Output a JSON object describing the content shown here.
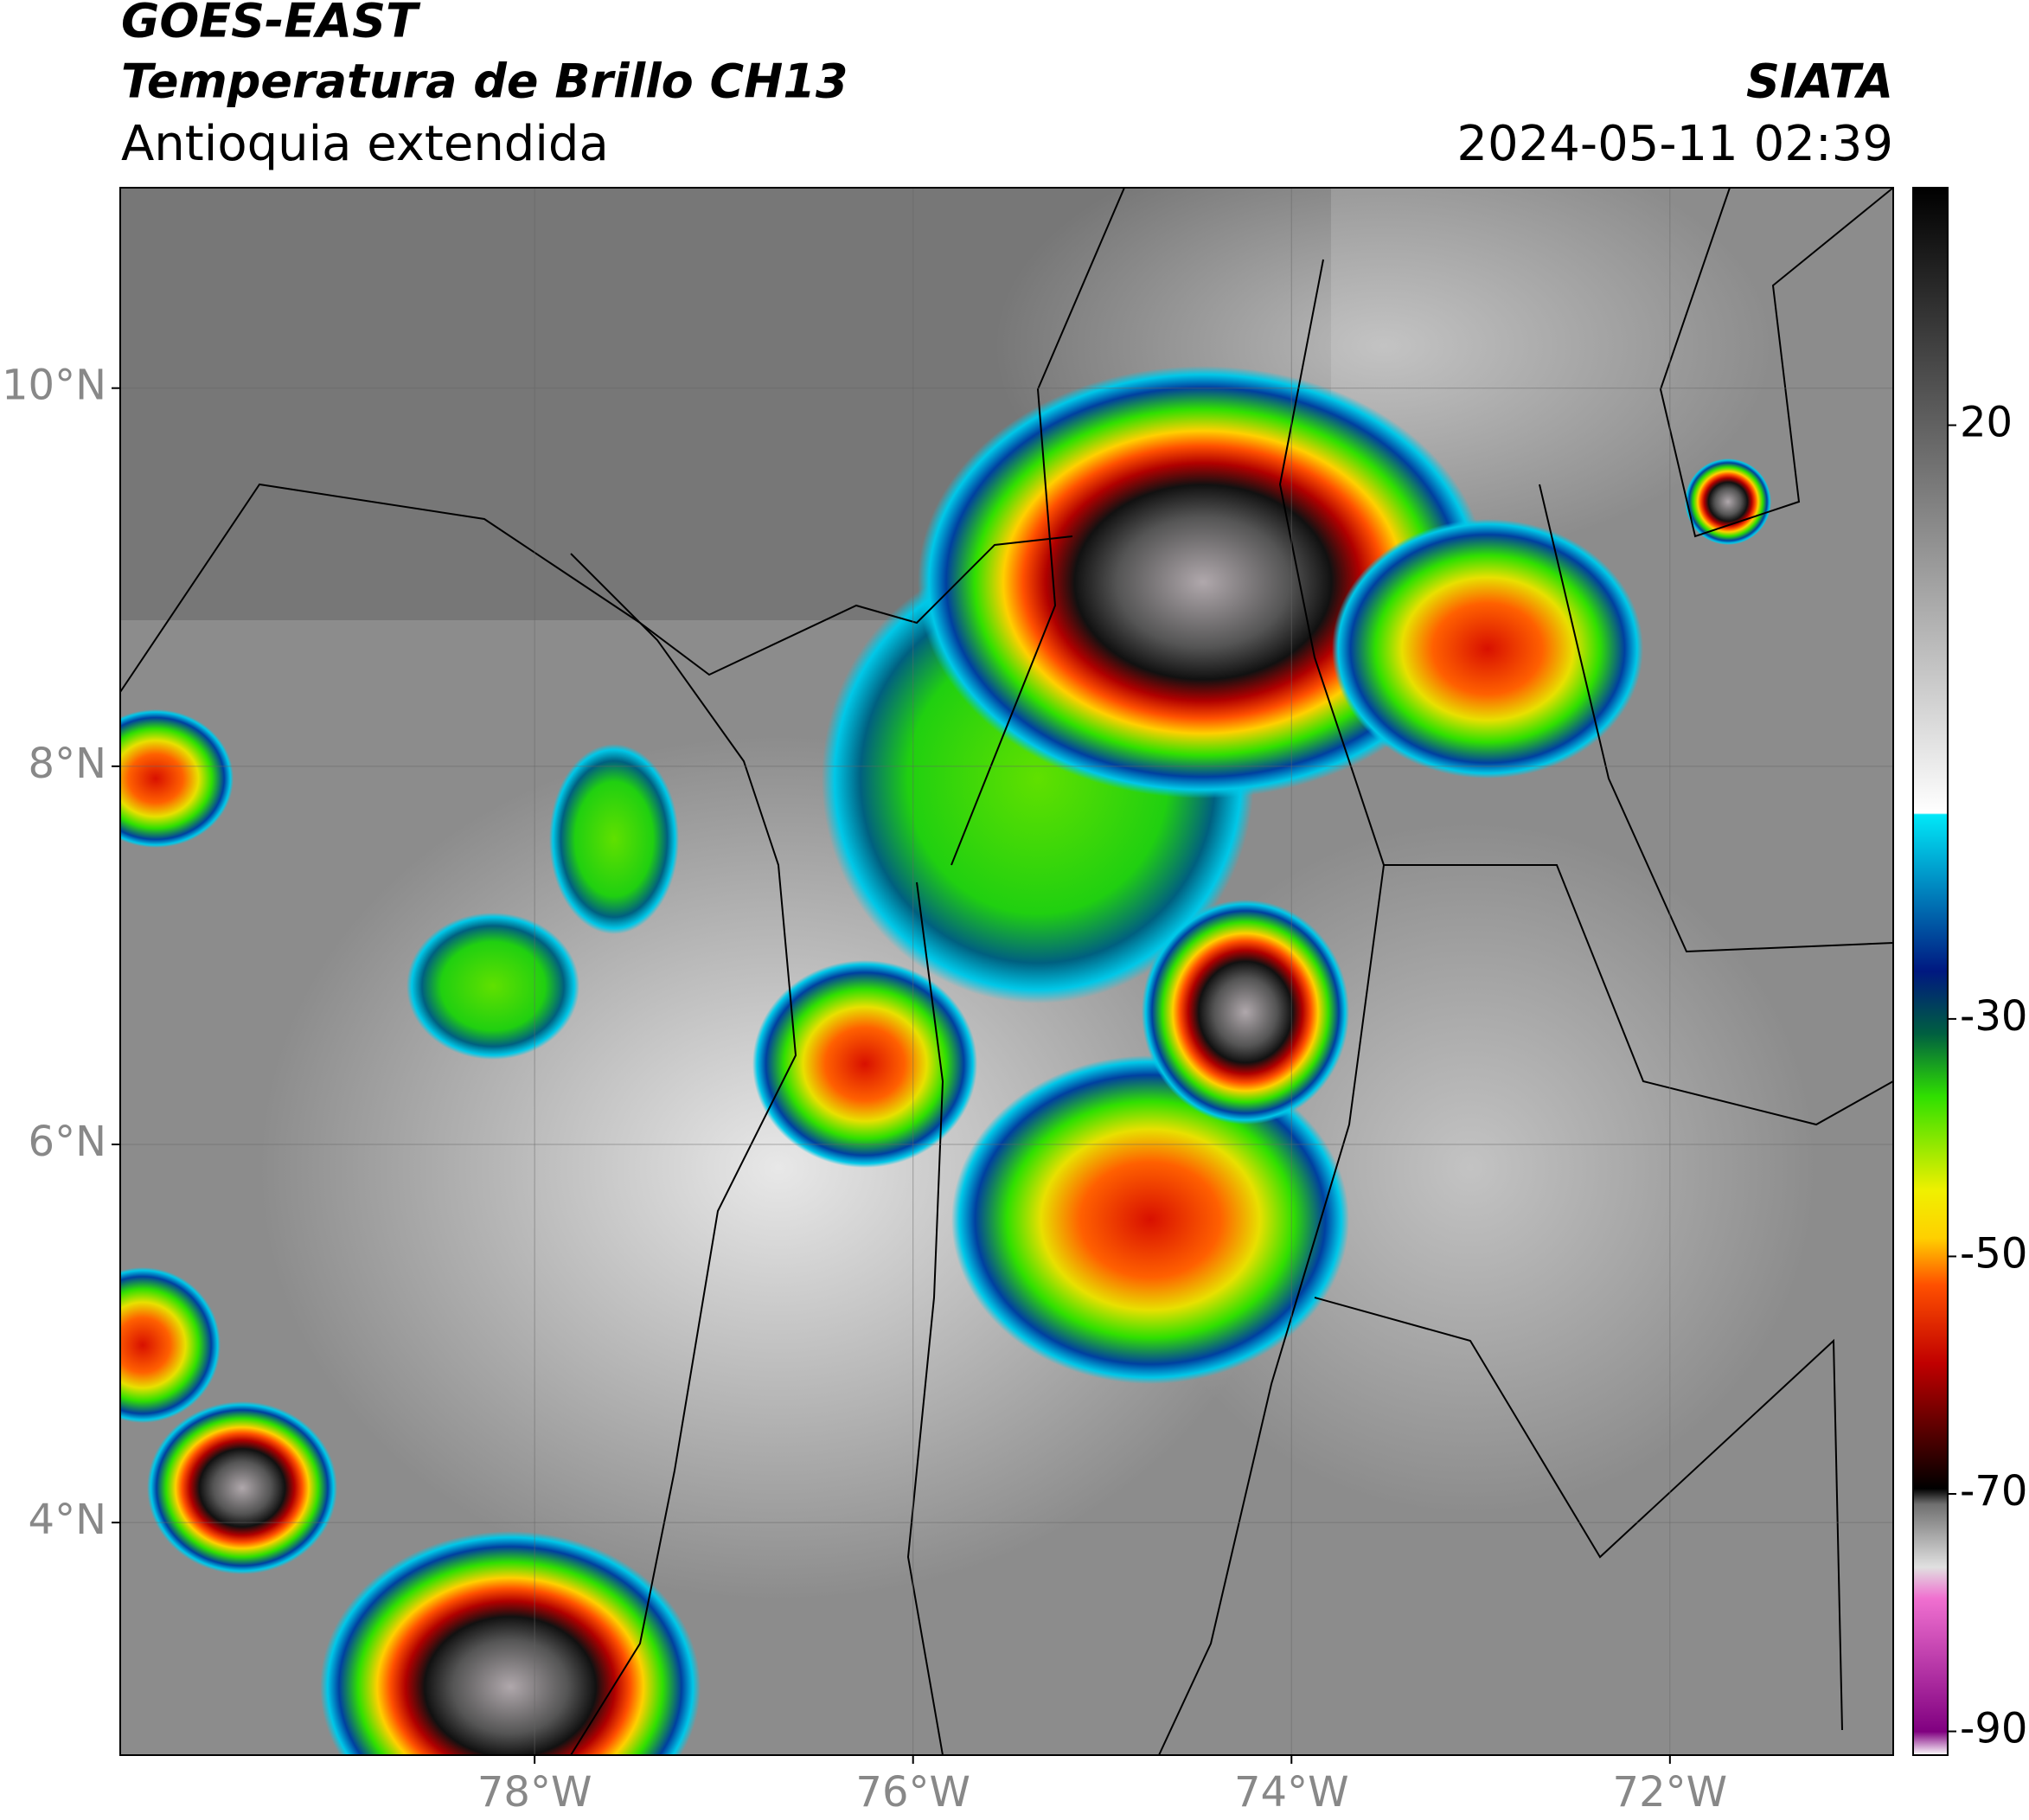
{
  "header": {
    "satellite": "GOES-EAST",
    "product": "Temperatura de Brillo CH13",
    "region": "Antioquia extendida",
    "source": "SIATA",
    "datetime": "2024-05-11 02:39"
  },
  "map": {
    "xlim": [
      -80.19,
      -70.82
    ],
    "ylim": [
      2.77,
      11.06
    ],
    "xticks": [
      {
        "value": -78,
        "label": "78°W"
      },
      {
        "value": -76,
        "label": "76°W"
      },
      {
        "value": -74,
        "label": "74°W"
      },
      {
        "value": -72,
        "label": "72°W"
      }
    ],
    "yticks": [
      {
        "value": 4,
        "label": "4°N"
      },
      {
        "value": 6,
        "label": "6°N"
      },
      {
        "value": 8,
        "label": "8°N"
      },
      {
        "value": 10,
        "label": "10°N"
      }
    ],
    "grid": true
  },
  "colorbar": {
    "lim": [
      -92,
      40
    ],
    "ticks": [
      -90,
      -70,
      -50,
      -30,
      20
    ]
  }
}
